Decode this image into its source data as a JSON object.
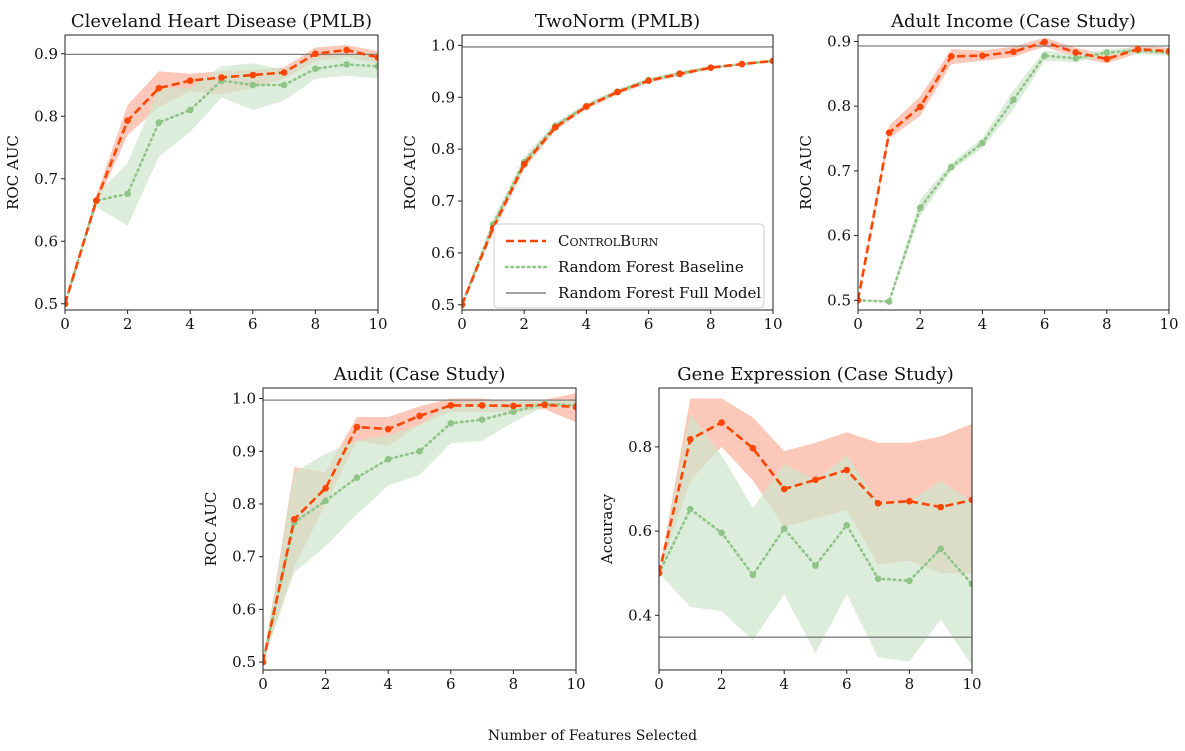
{
  "figure": {
    "xlabel_common": "Number of Features Selected",
    "colors": {
      "controlburn": "#ff4500",
      "controlburn_band": "#fa9a80",
      "baseline": "#8fc487",
      "baseline_band": "#cfe5cc",
      "full_model": "#808080"
    },
    "legend": {
      "placement": "lower-right of TwoNorm panel",
      "entries": [
        "ControlBurn",
        "Random Forest Baseline",
        "Random Forest Full Model"
      ]
    }
  },
  "chart_data": [
    {
      "type": "line",
      "title": "Cleveland Heart Disease (PMLB)",
      "xlabel": "",
      "ylabel": "ROC AUC",
      "xlim": [
        0,
        10
      ],
      "ylim": [
        0.49,
        0.93
      ],
      "xticks": [
        0,
        2,
        4,
        6,
        8,
        10
      ],
      "yticks": [
        0.5,
        0.6,
        0.7,
        0.8,
        0.9
      ],
      "ytick_labels": [
        "0.5",
        "0.6",
        "0.7",
        "0.8",
        "0.9"
      ],
      "grid": false,
      "x": [
        0,
        1,
        2,
        3,
        4,
        5,
        6,
        7,
        8,
        9,
        10
      ],
      "series": [
        {
          "name": "ControlBurn",
          "values": [
            0.5,
            0.665,
            0.793,
            0.845,
            0.857,
            0.862,
            0.866,
            0.87,
            0.9,
            0.906,
            0.894
          ],
          "lower": [
            0.5,
            0.658,
            0.77,
            0.815,
            0.84,
            0.835,
            0.845,
            0.86,
            0.888,
            0.895,
            0.884
          ],
          "upper": [
            0.5,
            0.673,
            0.818,
            0.872,
            0.868,
            0.872,
            0.874,
            0.878,
            0.91,
            0.914,
            0.904
          ]
        },
        {
          "name": "Random Forest Baseline",
          "values": [
            0.5,
            0.665,
            0.676,
            0.79,
            0.81,
            0.857,
            0.85,
            0.85,
            0.876,
            0.883,
            0.88
          ],
          "lower": [
            0.5,
            0.655,
            0.625,
            0.735,
            0.775,
            0.83,
            0.81,
            0.825,
            0.86,
            0.865,
            0.86
          ],
          "upper": [
            0.5,
            0.675,
            0.725,
            0.845,
            0.845,
            0.88,
            0.885,
            0.875,
            0.895,
            0.9,
            0.9
          ]
        },
        {
          "name": "Random Forest Full Model",
          "hline": 0.899
        }
      ]
    },
    {
      "type": "line",
      "title": "TwoNorm (PMLB)",
      "xlabel": "",
      "ylabel": "ROC AUC",
      "xlim": [
        0,
        10
      ],
      "ylim": [
        0.49,
        1.02
      ],
      "xticks": [
        0,
        2,
        4,
        6,
        8,
        10
      ],
      "yticks": [
        0.5,
        0.6,
        0.7,
        0.8,
        0.9,
        1.0
      ],
      "ytick_labels": [
        "0.5",
        "0.6",
        "0.7",
        "0.8",
        "0.9",
        "1.0"
      ],
      "grid": false,
      "x": [
        0,
        1,
        2,
        3,
        4,
        5,
        6,
        7,
        8,
        9,
        10
      ],
      "series": [
        {
          "name": "ControlBurn",
          "values": [
            0.5,
            0.648,
            0.771,
            0.842,
            0.882,
            0.91,
            0.932,
            0.945,
            0.957,
            0.964,
            0.97
          ],
          "lower": [
            0.5,
            0.64,
            0.762,
            0.836,
            0.877,
            0.905,
            0.928,
            0.941,
            0.954,
            0.962,
            0.968
          ],
          "upper": [
            0.5,
            0.656,
            0.78,
            0.848,
            0.887,
            0.915,
            0.936,
            0.949,
            0.96,
            0.966,
            0.972
          ]
        },
        {
          "name": "Random Forest Baseline",
          "values": [
            0.5,
            0.655,
            0.775,
            0.845,
            0.883,
            0.911,
            0.933,
            0.946,
            0.957,
            0.964,
            0.97
          ],
          "lower": [
            0.5,
            0.645,
            0.765,
            0.838,
            0.878,
            0.906,
            0.929,
            0.942,
            0.954,
            0.962,
            0.968
          ],
          "upper": [
            0.5,
            0.665,
            0.785,
            0.852,
            0.888,
            0.916,
            0.937,
            0.95,
            0.96,
            0.966,
            0.972
          ]
        },
        {
          "name": "Random Forest Full Model",
          "hline": 0.997
        }
      ]
    },
    {
      "type": "line",
      "title": "Adult Income (Case Study)",
      "xlabel": "",
      "ylabel": "ROC AUC",
      "xlim": [
        0,
        10
      ],
      "ylim": [
        0.485,
        0.91
      ],
      "xticks": [
        0,
        2,
        4,
        6,
        8,
        10
      ],
      "yticks": [
        0.5,
        0.6,
        0.7,
        0.8,
        0.9
      ],
      "ytick_labels": [
        "0.5",
        "0.6",
        "0.7",
        "0.8",
        "0.9"
      ],
      "grid": false,
      "x": [
        0,
        1,
        2,
        3,
        4,
        5,
        6,
        7,
        8,
        9,
        10
      ],
      "series": [
        {
          "name": "ControlBurn",
          "values": [
            0.5,
            0.759,
            0.799,
            0.877,
            0.878,
            0.884,
            0.899,
            0.883,
            0.873,
            0.888,
            0.885
          ],
          "lower": [
            0.5,
            0.75,
            0.785,
            0.865,
            0.87,
            0.876,
            0.892,
            0.876,
            0.866,
            0.882,
            0.88
          ],
          "upper": [
            0.5,
            0.77,
            0.815,
            0.888,
            0.886,
            0.892,
            0.906,
            0.89,
            0.88,
            0.894,
            0.89
          ]
        },
        {
          "name": "Random Forest Baseline",
          "values": [
            0.5,
            0.498,
            0.643,
            0.706,
            0.743,
            0.81,
            0.878,
            0.874,
            0.883,
            0.886,
            0.883
          ],
          "lower": [
            0.5,
            0.496,
            0.63,
            0.7,
            0.735,
            0.795,
            0.87,
            0.868,
            0.878,
            0.881,
            0.878
          ],
          "upper": [
            0.5,
            0.5,
            0.656,
            0.712,
            0.751,
            0.825,
            0.886,
            0.88,
            0.888,
            0.891,
            0.888
          ]
        },
        {
          "name": "Random Forest Full Model",
          "hline": 0.893
        }
      ]
    },
    {
      "type": "line",
      "title": "Audit (Case Study)",
      "xlabel": "",
      "ylabel": "ROC AUC",
      "xlim": [
        0,
        10
      ],
      "ylim": [
        0.485,
        1.02
      ],
      "xticks": [
        0,
        2,
        4,
        6,
        8,
        10
      ],
      "yticks": [
        0.5,
        0.6,
        0.7,
        0.8,
        0.9,
        1.0
      ],
      "ytick_labels": [
        "0.5",
        "0.6",
        "0.7",
        "0.8",
        "0.9",
        "1.0"
      ],
      "grid": false,
      "x": [
        0,
        1,
        2,
        3,
        4,
        5,
        6,
        7,
        8,
        9,
        10
      ],
      "series": [
        {
          "name": "ControlBurn",
          "values": [
            0.5,
            0.771,
            0.83,
            0.946,
            0.942,
            0.967,
            0.987,
            0.987,
            0.986,
            0.988,
            0.984
          ],
          "lower": [
            0.5,
            0.68,
            0.8,
            0.92,
            0.91,
            0.95,
            0.975,
            0.975,
            0.975,
            0.98,
            0.955
          ],
          "upper": [
            0.5,
            0.87,
            0.86,
            0.965,
            0.965,
            0.985,
            1.0,
            1.0,
            0.995,
            0.998,
            1.01
          ]
        },
        {
          "name": "Random Forest Baseline",
          "values": [
            0.5,
            0.765,
            0.806,
            0.85,
            0.885,
            0.9,
            0.953,
            0.96,
            0.975,
            0.99,
            0.987
          ],
          "lower": [
            0.5,
            0.67,
            0.72,
            0.78,
            0.835,
            0.855,
            0.915,
            0.92,
            0.955,
            0.985,
            0.98
          ],
          "upper": [
            0.5,
            0.86,
            0.895,
            0.92,
            0.93,
            0.95,
            0.99,
            0.995,
            0.995,
            0.998,
            0.995
          ]
        },
        {
          "name": "Random Forest Full Model",
          "hline": 0.997
        }
      ]
    },
    {
      "type": "line",
      "title": "Gene Expression (Case Study)",
      "xlabel": "",
      "ylabel": "Accuracy",
      "xlim": [
        0,
        10
      ],
      "ylim": [
        0.27,
        0.94
      ],
      "xticks": [
        0,
        2,
        4,
        6,
        8,
        10
      ],
      "yticks": [
        0.4,
        0.6,
        0.8
      ],
      "ytick_labels": [
        "0.4",
        "0.6",
        "0.8"
      ],
      "grid": false,
      "x": [
        0,
        1,
        2,
        3,
        4,
        5,
        6,
        7,
        8,
        9,
        10
      ],
      "series": [
        {
          "name": "ControlBurn",
          "values": [
            0.5,
            0.818,
            0.858,
            0.797,
            0.7,
            0.722,
            0.745,
            0.666,
            0.671,
            0.657,
            0.674
          ],
          "lower": [
            0.5,
            0.72,
            0.8,
            0.72,
            0.61,
            0.63,
            0.65,
            0.52,
            0.53,
            0.5,
            0.5
          ],
          "upper": [
            0.5,
            0.915,
            0.915,
            0.87,
            0.79,
            0.81,
            0.835,
            0.81,
            0.81,
            0.825,
            0.855
          ]
        },
        {
          "name": "Random Forest Baseline",
          "values": [
            0.5,
            0.652,
            0.596,
            0.496,
            0.606,
            0.518,
            0.614,
            0.487,
            0.482,
            0.558,
            0.474
          ],
          "lower": [
            0.5,
            0.42,
            0.41,
            0.34,
            0.45,
            0.31,
            0.45,
            0.3,
            0.29,
            0.39,
            0.28
          ],
          "upper": [
            0.5,
            0.88,
            0.78,
            0.655,
            0.76,
            0.72,
            0.78,
            0.67,
            0.67,
            0.72,
            0.67
          ]
        },
        {
          "name": "Random Forest Full Model",
          "hline": 0.348
        }
      ]
    }
  ]
}
